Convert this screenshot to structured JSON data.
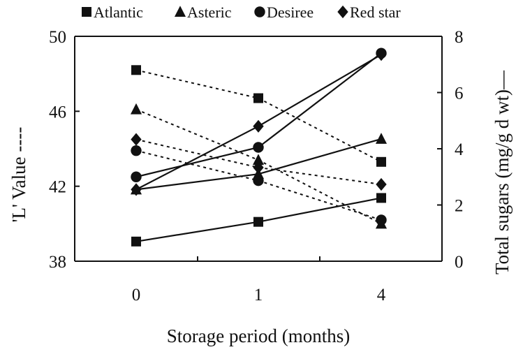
{
  "chart_data": {
    "type": "line",
    "title": "",
    "xlabel": "Storage period (months)",
    "ylabel_left": "'L' Value ----",
    "ylabel_right": "Total sugars (mg/g d wt)—",
    "categories": [
      "0",
      "1",
      "4"
    ],
    "y_left_lim": [
      38,
      50
    ],
    "y_left_ticks": [
      "38",
      "42",
      "46",
      "50"
    ],
    "y_right_lim": [
      0,
      8
    ],
    "y_right_ticks": [
      "0",
      "2",
      "4",
      "6",
      "8"
    ],
    "grid": false,
    "legend_position": "top",
    "legend": [
      {
        "name": "Atlantic",
        "marker": "square"
      },
      {
        "name": "Asteric",
        "marker": "triangle"
      },
      {
        "name": "Desiree",
        "marker": "circle"
      },
      {
        "name": "Red star",
        "marker": "diamond"
      }
    ],
    "series": [
      {
        "name": "Atlantic",
        "measure": "L value",
        "axis": "left",
        "style": "dashed",
        "marker": "square",
        "values": [
          48.2,
          46.7,
          43.3
        ]
      },
      {
        "name": "Asteric",
        "measure": "L value",
        "axis": "left",
        "style": "dashed",
        "marker": "triangle",
        "values": [
          46.1,
          43.4,
          40.0
        ]
      },
      {
        "name": "Desiree",
        "measure": "L value",
        "axis": "left",
        "style": "dashed",
        "marker": "circle",
        "values": [
          43.9,
          42.3,
          40.2
        ]
      },
      {
        "name": "Red star",
        "measure": "L value",
        "axis": "left",
        "style": "dashed",
        "marker": "diamond",
        "values": [
          44.5,
          43.0,
          42.1
        ]
      },
      {
        "name": "Atlantic",
        "measure": "Total sugars",
        "axis": "right",
        "style": "solid",
        "marker": "square",
        "values": [
          0.7,
          1.4,
          2.25
        ]
      },
      {
        "name": "Asteric",
        "measure": "Total sugars",
        "axis": "right",
        "style": "solid",
        "marker": "triangle",
        "values": [
          2.55,
          3.1,
          4.35
        ]
      },
      {
        "name": "Desiree",
        "measure": "Total sugars",
        "axis": "right",
        "style": "solid",
        "marker": "circle",
        "values": [
          3.0,
          4.05,
          7.4
        ]
      },
      {
        "name": "Red star",
        "measure": "Total sugars",
        "axis": "right",
        "style": "solid",
        "marker": "diamond",
        "values": [
          2.55,
          4.8,
          7.35
        ]
      }
    ]
  }
}
